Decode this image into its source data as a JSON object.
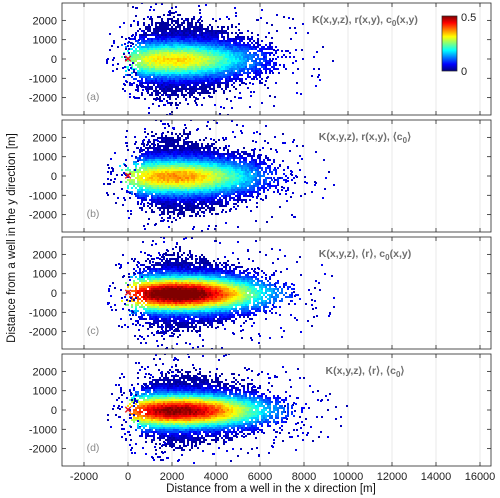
{
  "chart_data": {
    "type": "heatmap",
    "xlabel": "Distance from a well in the x direction [m]",
    "ylabel": "Distance from a well in the y direction [m]",
    "xlim": [
      -3000,
      16500
    ],
    "ylim": [
      -2900,
      2900
    ],
    "x_ticks": [
      -2000,
      0,
      2000,
      4000,
      6000,
      8000,
      10000,
      12000,
      14000,
      16000
    ],
    "x_tick_labels": [
      "-2000",
      "0",
      "2000",
      "4000",
      "6000",
      "8000",
      "10000",
      "12000",
      "14000",
      "16000"
    ],
    "y_ticks": [
      2000,
      1000,
      0,
      -1000,
      -2000
    ],
    "y_tick_labels": [
      "2000",
      "1000",
      "0",
      "-1000",
      "-2000"
    ],
    "grid": true,
    "well_marker": {
      "x": 0,
      "y": 0,
      "symbol": "×",
      "color": "#e8141e"
    },
    "colorbar": {
      "min": 0,
      "max": 0.5,
      "tick_labels": [
        "0.5",
        "0"
      ],
      "colormap": [
        "#00007f",
        "#0000ff",
        "#007fff",
        "#00ffff",
        "#7fff7f",
        "#ffff00",
        "#ff7f00",
        "#ff0000",
        "#7f0000"
      ],
      "panel_index": 0
    },
    "panels": [
      {
        "letter": "(a)",
        "title_main": "K(x,y,z), r(x,y), c",
        "title_sub": "0",
        "title_tail": "(x,y)",
        "plume": {
          "center_x": 2000,
          "center_y": 0,
          "peak": 0.33,
          "x_extent": [
            -400,
            7600
          ],
          "y_extent": [
            -2400,
            2600
          ]
        }
      },
      {
        "letter": "(b)",
        "title_main": "K(x,y,z), r(x,y), ⟨c",
        "title_sub": "0",
        "title_tail": "⟩",
        "plume": {
          "center_x": 2100,
          "center_y": 0,
          "peak": 0.37,
          "x_extent": [
            -400,
            7800
          ],
          "y_extent": [
            -2400,
            2500
          ]
        }
      },
      {
        "letter": "(c)",
        "title_main": "K(x,y,z), ⟨r⟩, c",
        "title_sub": "0",
        "title_tail": "(x,y)",
        "plume": {
          "center_x": 2200,
          "center_y": 0,
          "peak": 0.55,
          "x_extent": [
            -300,
            8000
          ],
          "y_extent": [
            -2300,
            2400
          ]
        }
      },
      {
        "letter": "(d)",
        "title_main": "K(x,y,z), ⟨r⟩, ⟨c",
        "title_sub": "0",
        "title_tail": "⟩",
        "plume": {
          "center_x": 2200,
          "center_y": 0,
          "peak": 0.5,
          "x_extent": [
            -300,
            8200
          ],
          "y_extent": [
            -2200,
            2400
          ]
        }
      }
    ]
  }
}
